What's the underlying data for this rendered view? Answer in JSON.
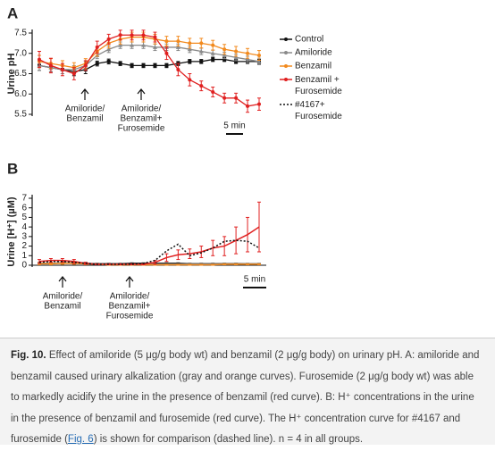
{
  "chart_data": [
    {
      "type": "line",
      "panel": "A",
      "ylabel": "Urine pH",
      "ylim": [
        5.5,
        7.5
      ],
      "yticks": [
        5.5,
        {
          "value": 6,
          "label": "6.0"
        },
        6.5,
        {
          "value": 7,
          "label": "7.0"
        },
        7.5
      ],
      "series": [
        {
          "name": "Control",
          "color": "#111111",
          "marker": "square",
          "values": [
            6.7,
            6.65,
            6.6,
            6.55,
            6.6,
            6.75,
            6.8,
            6.75,
            6.7,
            6.7,
            6.7,
            6.7,
            6.75,
            6.8,
            6.8,
            6.85,
            6.85,
            6.8,
            6.8,
            6.8
          ],
          "errors": [
            0.12,
            0.1,
            0.1,
            0.1,
            0.1,
            0.06,
            0.06,
            0.05,
            0.05,
            0.05,
            0.05,
            0.05,
            0.05,
            0.05,
            0.05,
            0.05,
            0.05,
            0.05,
            0.05,
            0.05
          ]
        },
        {
          "name": "Amiloride",
          "color": "#8a8a8a",
          "marker": "triangle",
          "values": [
            6.7,
            6.65,
            6.6,
            6.6,
            6.7,
            6.95,
            7.1,
            7.2,
            7.2,
            7.2,
            7.15,
            7.15,
            7.15,
            7.1,
            7.05,
            7.0,
            6.95,
            6.9,
            6.85,
            6.8
          ],
          "errors": [
            0.12,
            0.1,
            0.1,
            0.1,
            0.1,
            0.08,
            0.08,
            0.08,
            0.08,
            0.08,
            0.08,
            0.08,
            0.08,
            0.08,
            0.08,
            0.08,
            0.08,
            0.08,
            0.08,
            0.08
          ]
        },
        {
          "name": "Benzamil",
          "color": "#f28a1e",
          "marker": "circle",
          "values": [
            6.8,
            6.75,
            6.7,
            6.65,
            6.75,
            7.05,
            7.25,
            7.35,
            7.4,
            7.4,
            7.35,
            7.3,
            7.3,
            7.25,
            7.25,
            7.2,
            7.1,
            7.05,
            7.0,
            6.95
          ],
          "errors": [
            0.15,
            0.12,
            0.12,
            0.12,
            0.12,
            0.12,
            0.12,
            0.12,
            0.12,
            0.12,
            0.12,
            0.12,
            0.12,
            0.12,
            0.12,
            0.12,
            0.12,
            0.12,
            0.12,
            0.12
          ]
        },
        {
          "name": "Benzamil + Furosemide",
          "color": "#e02020",
          "marker": "circle",
          "values": [
            6.85,
            6.7,
            6.6,
            6.5,
            6.7,
            7.15,
            7.35,
            7.45,
            7.45,
            7.45,
            7.4,
            7.0,
            6.6,
            6.35,
            6.2,
            6.05,
            5.9,
            5.9,
            5.7,
            5.75
          ],
          "errors": [
            0.2,
            0.18,
            0.15,
            0.15,
            0.12,
            0.15,
            0.12,
            0.12,
            0.12,
            0.12,
            0.12,
            0.15,
            0.15,
            0.15,
            0.12,
            0.12,
            0.12,
            0.12,
            0.15,
            0.15
          ]
        }
      ],
      "annotations": [
        [
          "Amiloride/",
          "Benzamil"
        ],
        [
          "Amiloride/",
          "Benzamil+",
          "Furosemide"
        ]
      ],
      "scale_bar": "5 min"
    },
    {
      "type": "line",
      "panel": "B",
      "ylabel": "Urine [H⁺] (µM)",
      "ylim": [
        0,
        7
      ],
      "yticks": [
        0,
        1,
        2,
        3,
        4,
        5,
        6,
        7
      ],
      "series": [
        {
          "name": "Control",
          "color": "#111111",
          "values": [
            0.2,
            0.2,
            0.25,
            0.25,
            0.2,
            0.15,
            0.15,
            0.15,
            0.2,
            0.2,
            0.2,
            0.2,
            0.2,
            0.15,
            0.15,
            0.15,
            0.15,
            0.15,
            0.15,
            0.15
          ],
          "errors": [
            0.1,
            0.1,
            0.1,
            0.1,
            0.1,
            0.05,
            0.05,
            0.05,
            0.05,
            0.05,
            0.05,
            0.05,
            0.05,
            0.05,
            0.05,
            0.05,
            0.05,
            0.05,
            0.05,
            0.05
          ]
        },
        {
          "name": "Amiloride",
          "color": "#8a8a8a",
          "values": [
            0.2,
            0.2,
            0.25,
            0.25,
            0.2,
            0.1,
            0.1,
            0.1,
            0.1,
            0.1,
            0.1,
            0.1,
            0.1,
            0.1,
            0.1,
            0.1,
            0.1,
            0.1,
            0.15,
            0.15
          ],
          "errors": [
            0.1,
            0.1,
            0.1,
            0.1,
            0.1,
            0.05,
            0.05,
            0.05,
            0.05,
            0.05,
            0.05,
            0.05,
            0.05,
            0.05,
            0.05,
            0.05,
            0.05,
            0.05,
            0.05,
            0.05
          ]
        },
        {
          "name": "Benzamil",
          "color": "#f28a1e",
          "values": [
            0.15,
            0.15,
            0.2,
            0.2,
            0.15,
            0.1,
            0.05,
            0.05,
            0.05,
            0.05,
            0.05,
            0.05,
            0.05,
            0.05,
            0.05,
            0.05,
            0.1,
            0.1,
            0.1,
            0.1
          ],
          "errors": [
            0.1,
            0.1,
            0.1,
            0.1,
            0.1,
            0.05,
            0.05,
            0.05,
            0.05,
            0.05,
            0.05,
            0.05,
            0.05,
            0.05,
            0.05,
            0.05,
            0.05,
            0.05,
            0.05,
            0.05
          ]
        },
        {
          "name": "Benzamil + Furosemide",
          "color": "#e02020",
          "values": [
            0.4,
            0.5,
            0.5,
            0.4,
            0.2,
            0.1,
            0.1,
            0.1,
            0.1,
            0.1,
            0.3,
            0.8,
            1.1,
            1.2,
            1.4,
            1.8,
            2.0,
            2.6,
            3.2,
            4.0
          ],
          "errors": [
            0.2,
            0.2,
            0.2,
            0.2,
            0.1,
            0.05,
            0.05,
            0.05,
            0.05,
            0.05,
            0.2,
            0.4,
            0.5,
            0.5,
            0.6,
            0.8,
            1.0,
            1.4,
            1.8,
            2.6
          ]
        },
        {
          "name": "#4167+ Furosemide",
          "color": "#111111",
          "line_style": "dotted",
          "values": [
            0.3,
            0.4,
            0.4,
            0.3,
            0.2,
            0.1,
            0.1,
            0.1,
            0.1,
            0.2,
            0.5,
            1.5,
            2.2,
            1.0,
            1.3,
            1.8,
            2.5,
            2.6,
            2.5,
            1.8
          ]
        }
      ],
      "annotations": [
        [
          "Amiloride/",
          "Benzamil"
        ],
        [
          "Amiloride/",
          "Benzamil+",
          "Furosemide"
        ]
      ],
      "scale_bar": "5 min"
    }
  ],
  "caption": {
    "label": "Fig. 10.",
    "text_before": " Effect of amiloride (5 μg/g body wt) and benzamil (2 μg/g body) on urinary pH. A: amiloride and benzamil caused urinary alkalization (gray and orange curves). Furosemide (2 μg/g body wt) was able to markedly acidify the urine in the presence of benzamil (red curve). B: H⁺ concentrations in the urine in the presence of benzamil and furosemide (red curve). The H⁺ concentration curve for #4167 and furosemide (",
    "link": "Fig. 6",
    "text_after": ") is shown for comparison (dashed line). n = 4 in all groups."
  }
}
